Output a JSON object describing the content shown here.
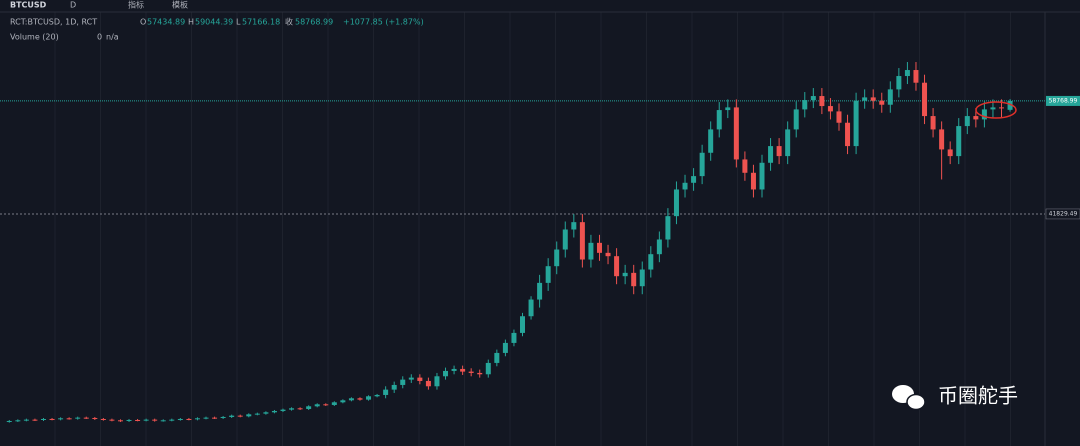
{
  "header": {
    "symbol": "BTCUSD",
    "toolbar": [
      "D",
      "指标",
      "模板"
    ]
  },
  "chart_data": {
    "type": "candlestick",
    "title": "RCT:BTCUSD, 1D, RCT",
    "legend_labels": [
      "O",
      "H",
      "L",
      "收"
    ],
    "change": "+1077.85 (+1.87%)",
    "volume_title": "Volume (20)",
    "volume_value": 0,
    "volume_status": "n/a",
    "up_color": "#26a69a",
    "down_color": "#ef5350",
    "ylim": [
      7950,
      69400
    ],
    "marked_price": 41829.49,
    "open": [
      10700,
      10800,
      10900,
      11000,
      10950,
      11100,
      11050,
      11200,
      11150,
      11300,
      11250,
      11100,
      11000,
      10900,
      10800,
      10950,
      10900,
      11000,
      10850,
      10900,
      11000,
      11100,
      11050,
      11200,
      11300,
      11250,
      11400,
      11600,
      11500,
      11800,
      11900,
      12100,
      12300,
      12500,
      12700,
      12600,
      13000,
      13300,
      13200,
      13600,
      13900,
      14200,
      14000,
      14500,
      14700,
      15500,
      16200,
      17000,
      17300,
      16800,
      16000,
      17500,
      18300,
      18600,
      18200,
      18000,
      17800,
      19500,
      21000,
      22500,
      24000,
      26500,
      29000,
      31500,
      34000,
      36500,
      39500,
      40600,
      35000,
      37500,
      36000,
      35500,
      32500,
      33000,
      31000,
      33500,
      35800,
      38000,
      41500,
      45500,
      46500,
      47500,
      51000,
      54500,
      57400,
      57800,
      50000,
      48000,
      45500,
      49500,
      52000,
      50500,
      54500,
      57500,
      58900,
      59500,
      58000,
      57200,
      55500,
      52000,
      58800,
      59300,
      58800,
      58200,
      60500,
      62500,
      63400,
      61500,
      56500,
      54500,
      51500,
      50500,
      55000,
      56500,
      56000,
      57500,
      57800,
      57434.89
    ],
    "high": [
      10950,
      11050,
      11150,
      11150,
      11250,
      11250,
      11350,
      11350,
      11450,
      11450,
      11400,
      11250,
      11150,
      11050,
      11100,
      11100,
      11150,
      11150,
      11050,
      11150,
      11250,
      11250,
      11350,
      11450,
      11450,
      11550,
      11750,
      11750,
      11950,
      12050,
      12250,
      12450,
      12650,
      12850,
      12850,
      13150,
      13450,
      13450,
      13750,
      14050,
      14350,
      14350,
      14650,
      14850,
      16000,
      16700,
      17500,
      17800,
      17800,
      17300,
      18000,
      18800,
      19100,
      19100,
      18700,
      18500,
      20000,
      21500,
      23000,
      24500,
      27000,
      29500,
      32700,
      35200,
      37700,
      40700,
      41800,
      41800,
      38700,
      38700,
      37200,
      36700,
      34200,
      34200,
      34700,
      37000,
      39200,
      42700,
      46700,
      47700,
      48700,
      52200,
      55700,
      58600,
      59000,
      59000,
      51200,
      49200,
      50700,
      53200,
      53200,
      55700,
      58700,
      60100,
      60700,
      60700,
      59200,
      58400,
      56700,
      60000,
      60500,
      60500,
      60000,
      61700,
      63700,
      64600,
      64600,
      62700,
      57700,
      55700,
      52700,
      56200,
      57700,
      57700,
      58700,
      59000,
      59000,
      59044.39
    ],
    "low": [
      10550,
      10650,
      10750,
      10800,
      10800,
      10900,
      10900,
      11000,
      11000,
      11100,
      10950,
      10850,
      10750,
      10650,
      10650,
      10750,
      10750,
      10700,
      10700,
      10750,
      10850,
      10900,
      10900,
      11050,
      11100,
      11100,
      11250,
      11350,
      11350,
      11650,
      11750,
      11950,
      12150,
      12350,
      12450,
      12450,
      12850,
      13050,
      13050,
      13450,
      13750,
      13850,
      13850,
      14350,
      14200,
      15000,
      15700,
      16500,
      16300,
      15500,
      15500,
      17000,
      17800,
      17700,
      17500,
      17300,
      17300,
      19000,
      20500,
      22000,
      23500,
      26000,
      27800,
      30300,
      32800,
      35300,
      38300,
      33800,
      33800,
      34800,
      34300,
      31300,
      31300,
      29800,
      29800,
      32300,
      34600,
      36800,
      40300,
      44300,
      45300,
      46300,
      49800,
      53300,
      56200,
      48800,
      46800,
      44300,
      44300,
      48300,
      49300,
      49300,
      53300,
      56300,
      57700,
      56800,
      56000,
      54300,
      50800,
      50800,
      57600,
      57600,
      57000,
      57000,
      59300,
      61300,
      60300,
      55300,
      53300,
      47000,
      49300,
      49300,
      53800,
      54800,
      54800,
      56300,
      56200,
      57166.18
    ],
    "close": [
      10800,
      10900,
      11000,
      10950,
      11100,
      11050,
      11200,
      11150,
      11300,
      11250,
      11100,
      11000,
      10900,
      10800,
      10950,
      10900,
      11000,
      10850,
      10900,
      11000,
      11100,
      11050,
      11200,
      11300,
      11250,
      11400,
      11600,
      11500,
      11800,
      11900,
      12100,
      12300,
      12500,
      12700,
      12600,
      13000,
      13300,
      13200,
      13600,
      13900,
      14200,
      14000,
      14500,
      14700,
      15500,
      16200,
      17000,
      17300,
      16800,
      16000,
      17500,
      18300,
      18600,
      18200,
      18000,
      17800,
      19500,
      21000,
      22500,
      24000,
      26500,
      29000,
      31500,
      34000,
      36500,
      39500,
      40600,
      35000,
      37500,
      36000,
      35500,
      32500,
      33000,
      31000,
      33500,
      35800,
      38000,
      41500,
      45500,
      46500,
      47500,
      51000,
      54500,
      57400,
      57800,
      50000,
      48000,
      45500,
      49500,
      52000,
      50500,
      54500,
      57500,
      58900,
      59500,
      58000,
      57200,
      55500,
      52000,
      58800,
      59300,
      58800,
      58200,
      60500,
      62500,
      63400,
      61500,
      56500,
      54500,
      51500,
      50500,
      55000,
      56500,
      56000,
      57500,
      57800,
      57691.14,
      58768.99
    ]
  },
  "watermark": "币圈舵手"
}
